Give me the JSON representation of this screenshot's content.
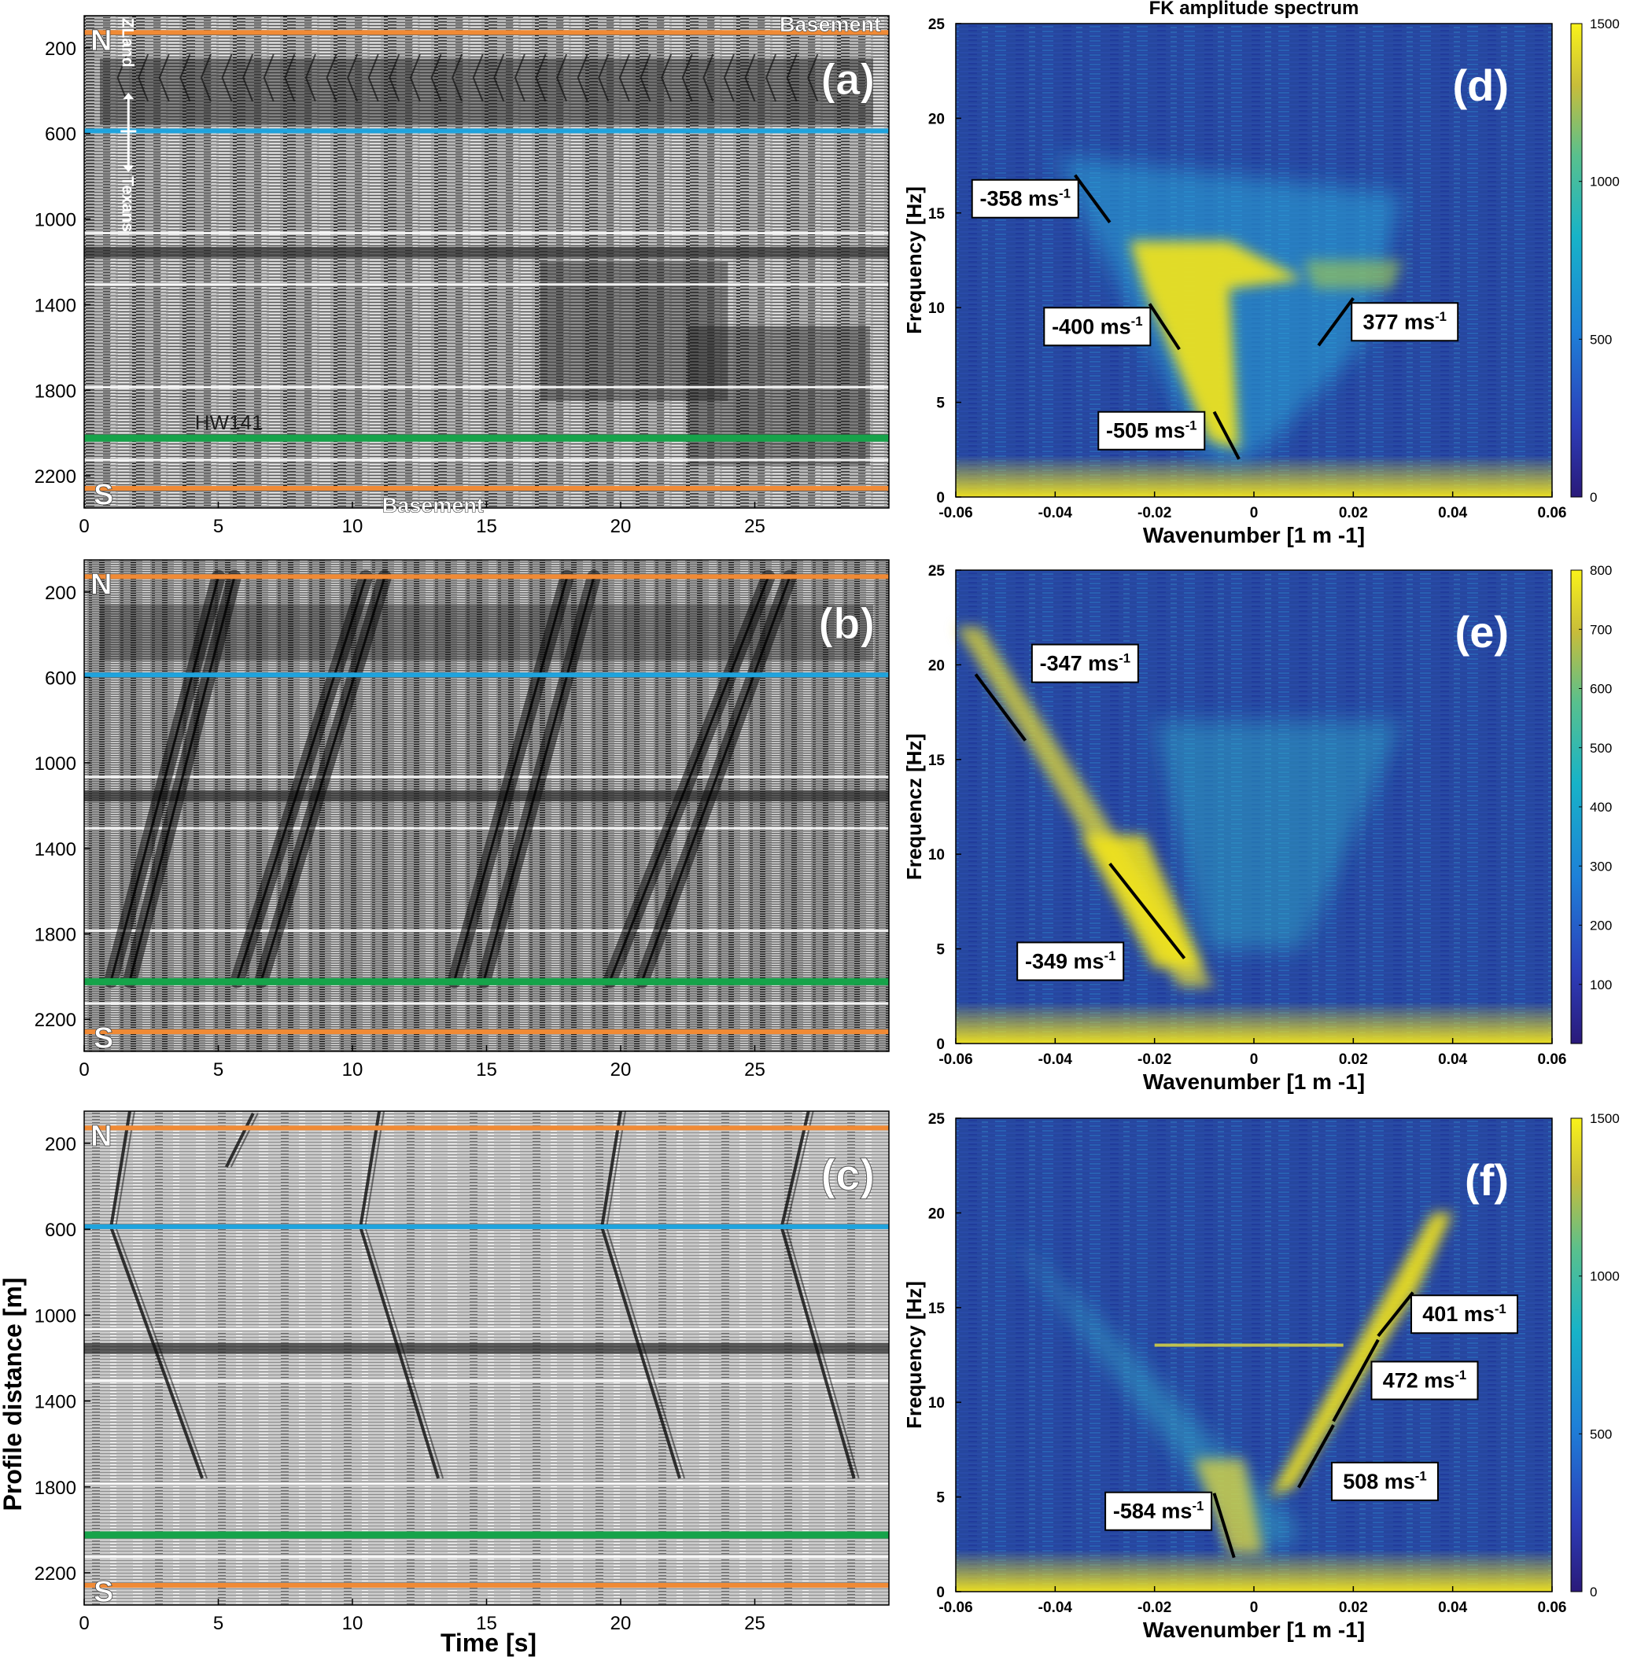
{
  "figure": {
    "fk_title": "FK amplitude spectrum",
    "seis_ylabel": "Profile distance [m]",
    "seis_xlabel": "Time [s]",
    "colors": {
      "orange": "#f08a35",
      "blue": "#1fa3dd",
      "green": "#16a34a",
      "white": "#ffffff",
      "fk_low": "#1c3aa8",
      "fk_mid": "#1e90d5",
      "fk_high": "#f5e61b",
      "annot_line": "#000000"
    }
  },
  "chart_data": [
    {
      "panel": "a",
      "type": "heatmap",
      "label": "(a)",
      "x_ticks": [
        "0",
        "5",
        "10",
        "15",
        "20",
        "25"
      ],
      "xlim": [
        0,
        30
      ],
      "y_ticks": [
        "200",
        "600",
        "1000",
        "1400",
        "1800",
        "2200"
      ],
      "ylim": [
        2350,
        50
      ],
      "y_reversed": true,
      "markers": [
        {
          "kind": "line",
          "value": 130,
          "color": "orange",
          "label": "Basement"
        },
        {
          "kind": "line",
          "value": 590,
          "color": "blue",
          "label": ""
        },
        {
          "kind": "line",
          "value": 2020,
          "color": "green",
          "label": "HW141"
        },
        {
          "kind": "line",
          "value": 2260,
          "color": "orange",
          "label": "Basement"
        }
      ],
      "text": {
        "north": "N",
        "south": "S",
        "basement_top": "Basement",
        "basement_bottom": "Basement",
        "road": "HW141",
        "zland": "ZLand",
        "texans": "Texans"
      },
      "wave_events": []
    },
    {
      "panel": "b",
      "type": "heatmap",
      "label": "(b)",
      "x_ticks": [
        "0",
        "5",
        "10",
        "15",
        "20",
        "25"
      ],
      "xlim": [
        0,
        30
      ],
      "y_ticks": [
        "200",
        "600",
        "1000",
        "1400",
        "1800",
        "2200"
      ],
      "ylim": [
        2350,
        50
      ],
      "y_reversed": true,
      "markers": [
        {
          "kind": "line",
          "value": 130,
          "color": "orange",
          "label": ""
        },
        {
          "kind": "line",
          "value": 590,
          "color": "blue",
          "label": ""
        },
        {
          "kind": "line",
          "value": 2020,
          "color": "green",
          "label": ""
        },
        {
          "kind": "line",
          "value": 2260,
          "color": "orange",
          "label": ""
        }
      ],
      "text": {
        "north": "N",
        "south": "S"
      },
      "wave_events": [
        {
          "t0": 5.0,
          "t1": 1.0
        },
        {
          "t0": 5.6,
          "t1": 1.7
        },
        {
          "t0": 10.5,
          "t1": 5.7
        },
        {
          "t0": 11.2,
          "t1": 6.6
        },
        {
          "t0": 18.0,
          "t1": 13.8
        },
        {
          "t0": 19.0,
          "t1": 14.9
        },
        {
          "t0": 25.5,
          "t1": 19.6
        },
        {
          "t0": 26.3,
          "t1": 20.8
        }
      ]
    },
    {
      "panel": "c",
      "type": "heatmap",
      "label": "(c)",
      "x_ticks": [
        "0",
        "5",
        "10",
        "15",
        "20",
        "25"
      ],
      "xlim": [
        0,
        30
      ],
      "y_ticks": [
        "200",
        "600",
        "1000",
        "1400",
        "1800",
        "2200"
      ],
      "ylim": [
        2350,
        50
      ],
      "y_reversed": true,
      "markers": [
        {
          "kind": "line",
          "value": 130,
          "color": "orange",
          "label": ""
        },
        {
          "kind": "line",
          "value": 590,
          "color": "blue",
          "label": ""
        },
        {
          "kind": "line",
          "value": 2020,
          "color": "green",
          "label": ""
        },
        {
          "kind": "line",
          "value": 2260,
          "color": "orange",
          "label": ""
        }
      ],
      "text": {
        "north": "N",
        "south": "S"
      },
      "wave_events": [
        {
          "d0": 50,
          "d1": 590,
          "t0": 1.7,
          "t1": 1.0
        },
        {
          "d0": 590,
          "d1": 1760,
          "t0": 1.0,
          "t1": 4.4
        },
        {
          "d0": 50,
          "d1": 590,
          "t0": 11.0,
          "t1": 10.3
        },
        {
          "d0": 590,
          "d1": 1760,
          "t0": 10.3,
          "t1": 13.2
        },
        {
          "d0": 50,
          "d1": 590,
          "t0": 20.0,
          "t1": 19.3
        },
        {
          "d0": 590,
          "d1": 1760,
          "t0": 19.3,
          "t1": 22.2
        },
        {
          "d0": 50,
          "d1": 590,
          "t0": 27.0,
          "t1": 26.0
        },
        {
          "d0": 590,
          "d1": 1760,
          "t0": 26.0,
          "t1": 28.7
        },
        {
          "d0": 60,
          "d1": 310,
          "t0": 6.3,
          "t1": 5.3
        }
      ]
    },
    {
      "panel": "d",
      "type": "heatmap",
      "label": "(d)",
      "title": "FK amplitude spectrum",
      "xlabel": "Wavenumber [1 m -1]",
      "ylabel": "Frequency [Hz]",
      "xlim": [
        -0.06,
        0.06
      ],
      "ylim": [
        0,
        25
      ],
      "x_ticks": [
        "-0.06",
        "-0.04",
        "-0.02",
        "0",
        "0.02",
        "0.04",
        "0.06"
      ],
      "y_ticks": [
        "0",
        "5",
        "10",
        "15",
        "20",
        "25"
      ],
      "colorbar": {
        "min": 0,
        "max": 1500,
        "ticks": [
          "0",
          "500",
          "1000",
          "1500"
        ]
      },
      "velocity_annotations": [
        {
          "label": "-358 ms-1",
          "k0": -0.036,
          "f0": 17.0,
          "k1": -0.029,
          "f1": 14.5
        },
        {
          "label": "-400 ms-1",
          "k0": -0.021,
          "f0": 10.2,
          "k1": -0.015,
          "f1": 7.8
        },
        {
          "label": "-505 ms-1",
          "k0": -0.008,
          "f0": 4.5,
          "k1": -0.003,
          "f1": 2.0
        },
        {
          "label": "377 ms-1",
          "k0": 0.013,
          "f0": 8.0,
          "k1": 0.02,
          "f1": 10.5
        }
      ]
    },
    {
      "panel": "e",
      "type": "heatmap",
      "label": "(e)",
      "xlabel": "Wavenumber [1 m -1]",
      "ylabel": "Frequencz [Hz]",
      "xlim": [
        -0.06,
        0.06
      ],
      "ylim": [
        0,
        25
      ],
      "x_ticks": [
        "-0.06",
        "-0.04",
        "-0.02",
        "0",
        "0.02",
        "0.04",
        "0.06"
      ],
      "y_ticks": [
        "0",
        "5",
        "10",
        "15",
        "20",
        "25"
      ],
      "colorbar": {
        "min": 0,
        "max": 800,
        "ticks": [
          "100",
          "200",
          "300",
          "400",
          "500",
          "600",
          "700",
          "800"
        ]
      },
      "velocity_annotations": [
        {
          "label": "-347 ms-1",
          "k0": -0.056,
          "f0": 19.5,
          "k1": -0.046,
          "f1": 16.0
        },
        {
          "label": "-349 ms-1",
          "k0": -0.029,
          "f0": 9.5,
          "k1": -0.014,
          "f1": 4.5
        }
      ]
    },
    {
      "panel": "f",
      "type": "heatmap",
      "label": "(f)",
      "xlabel": "Wavenumber [1 m -1]",
      "ylabel": "Frequency [Hz]",
      "xlim": [
        -0.06,
        0.06
      ],
      "ylim": [
        0,
        25
      ],
      "x_ticks": [
        "-0.06",
        "-0.04",
        "-0.02",
        "0",
        "0.02",
        "0.04",
        "0.06"
      ],
      "y_ticks": [
        "0",
        "5",
        "10",
        "15",
        "20",
        "25"
      ],
      "colorbar": {
        "min": 0,
        "max": 1500,
        "ticks": [
          "0",
          "500",
          "1000",
          "1500"
        ]
      },
      "velocity_annotations": [
        {
          "label": "401 ms-1",
          "k0": 0.025,
          "f0": 13.5,
          "k1": 0.032,
          "f1": 15.8
        },
        {
          "label": "472 ms-1",
          "k0": 0.016,
          "f0": 9.0,
          "k1": 0.025,
          "f1": 13.3
        },
        {
          "label": "508 ms-1",
          "k0": 0.009,
          "f0": 5.5,
          "k1": 0.016,
          "f1": 8.8
        },
        {
          "label": "-584 ms-1",
          "k0": -0.008,
          "f0": 5.2,
          "k1": -0.004,
          "f1": 1.8
        }
      ]
    }
  ]
}
